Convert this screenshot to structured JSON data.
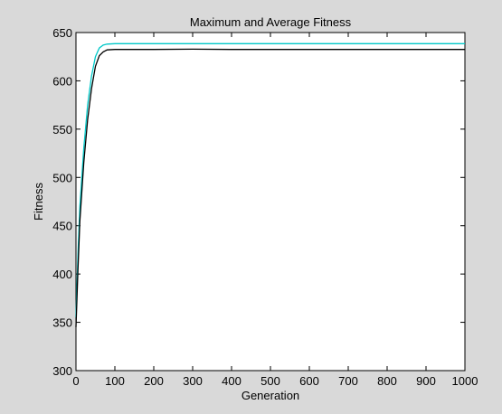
{
  "chart_data": {
    "type": "line",
    "title": "Maximum and Average Fitness",
    "xlabel": "Generation",
    "ylabel": "Fitness",
    "xlim": [
      0,
      1000
    ],
    "ylim": [
      300,
      650
    ],
    "x_ticks": [
      0,
      100,
      200,
      300,
      400,
      500,
      600,
      700,
      800,
      900,
      1000
    ],
    "y_ticks": [
      300,
      350,
      400,
      450,
      500,
      550,
      600,
      650
    ],
    "grid": false,
    "legend": "none",
    "series": [
      {
        "color": "#00c8c8",
        "x": [
          0,
          5,
          10,
          20,
          30,
          40,
          50,
          60,
          70,
          80,
          100,
          200,
          300,
          400,
          500,
          600,
          700,
          800,
          900,
          1000
        ],
        "values": [
          355,
          420,
          470,
          530,
          575,
          605,
          625,
          634,
          637,
          638,
          638.5,
          638.5,
          638.5,
          638.5,
          638.5,
          638.5,
          638.5,
          638.5,
          638.5,
          638.5
        ]
      },
      {
        "color": "#000000",
        "x": [
          0,
          5,
          10,
          20,
          30,
          40,
          50,
          60,
          70,
          80,
          100,
          200,
          300,
          400,
          500,
          600,
          700,
          800,
          900,
          1000
        ],
        "values": [
          345,
          405,
          455,
          515,
          560,
          592,
          615,
          626,
          630,
          632,
          632.5,
          632.5,
          632.8,
          632.5,
          632.5,
          632.5,
          632.5,
          632.5,
          632.5,
          632.5
        ]
      }
    ]
  }
}
